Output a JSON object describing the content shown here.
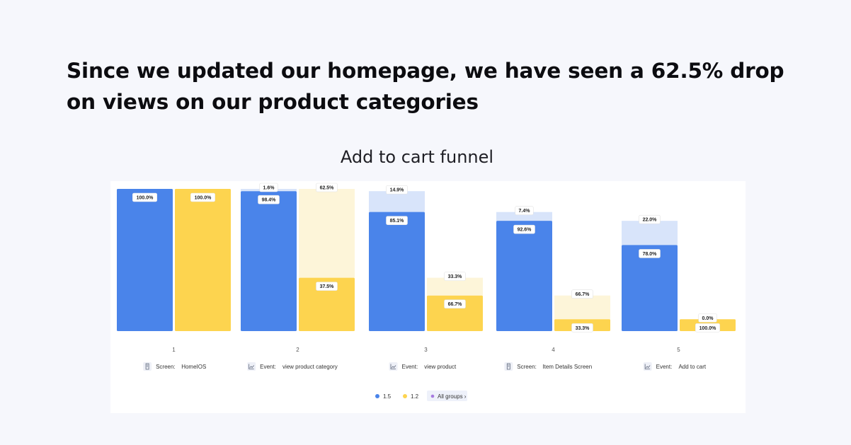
{
  "headline": "Since we updated our homepage, we have seen a 62.5% drop on views on our product categories",
  "colors": {
    "series_1_5": "#4a84ea",
    "series_1_5_drop": "#d8e4fa",
    "series_1_2": "#fdd44f",
    "series_1_2_drop": "#fdf5d9"
  },
  "chart_data": {
    "type": "bar",
    "title": "Add to cart funnel",
    "steps": [
      {
        "number": "1",
        "type_label": "Screen:",
        "name": "HomeIOS",
        "icon": "screen-icon"
      },
      {
        "number": "2",
        "type_label": "Event:",
        "name": "view product category",
        "icon": "event-icon"
      },
      {
        "number": "3",
        "type_label": "Event:",
        "name": "view product",
        "icon": "event-icon"
      },
      {
        "number": "4",
        "type_label": "Screen:",
        "name": "Item Details Screen",
        "icon": "screen-icon"
      },
      {
        "number": "5",
        "type_label": "Event:",
        "name": "Add to cart",
        "icon": "event-icon"
      }
    ],
    "series": [
      {
        "name": "1.5",
        "conversion": [
          "100.0%",
          "98.4%",
          "85.1%",
          "92.6%",
          "78.0%"
        ],
        "dropoff": [
          null,
          "1.6%",
          "14.9%",
          "7.4%",
          "22.0%"
        ],
        "conversion_values": [
          100.0,
          98.4,
          85.1,
          92.6,
          78.0
        ],
        "dropoff_values": [
          0,
          1.6,
          14.9,
          7.4,
          22.0
        ]
      },
      {
        "name": "1.2",
        "conversion": [
          "100.0%",
          "37.5%",
          "66.7%",
          "33.3%",
          "100.0%"
        ],
        "dropoff": [
          null,
          "62.5%",
          "33.3%",
          "66.7%",
          "0.0%"
        ],
        "conversion_values": [
          100.0,
          37.5,
          66.7,
          33.3,
          100.0
        ],
        "dropoff_values": [
          0,
          62.5,
          33.3,
          66.7,
          0.0
        ]
      }
    ],
    "legend": {
      "items": [
        "1.5",
        "1.2"
      ],
      "all_groups_label": "All groups ›",
      "position": "bottom-center"
    }
  }
}
